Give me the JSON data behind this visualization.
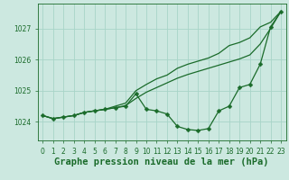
{
  "title": "Graphe pression niveau de la mer (hPa)",
  "bg_color": "#cce8e0",
  "grid_color": "#a8d4c8",
  "line_color": "#1a6b2a",
  "ylim": [
    1023.4,
    1027.8
  ],
  "yticks": [
    1024,
    1025,
    1026,
    1027
  ],
  "line1_markers": [
    1024.2,
    1024.1,
    1024.15,
    1024.2,
    1024.3,
    1024.35,
    1024.4,
    1024.45,
    1024.5,
    1024.9,
    1024.4,
    1024.35,
    1024.25,
    1023.85,
    1023.75,
    1023.72,
    1023.78,
    1024.35,
    1024.5,
    1025.1,
    1025.2,
    1025.85,
    1027.05,
    1027.55
  ],
  "line2_straight": [
    1024.2,
    1024.1,
    1024.15,
    1024.2,
    1024.3,
    1024.35,
    1024.4,
    1024.45,
    1024.52,
    1024.75,
    1024.95,
    1025.1,
    1025.25,
    1025.4,
    1025.52,
    1025.62,
    1025.72,
    1025.82,
    1025.92,
    1026.02,
    1026.15,
    1026.5,
    1027.0,
    1027.55
  ],
  "line3_upper": [
    1024.2,
    1024.1,
    1024.15,
    1024.2,
    1024.3,
    1024.35,
    1024.4,
    1024.5,
    1024.6,
    1025.0,
    1025.2,
    1025.38,
    1025.5,
    1025.72,
    1025.85,
    1025.95,
    1026.05,
    1026.2,
    1026.45,
    1026.55,
    1026.7,
    1027.05,
    1027.2,
    1027.55
  ],
  "tick_fontsize": 5.5,
  "title_fontsize": 7.5
}
